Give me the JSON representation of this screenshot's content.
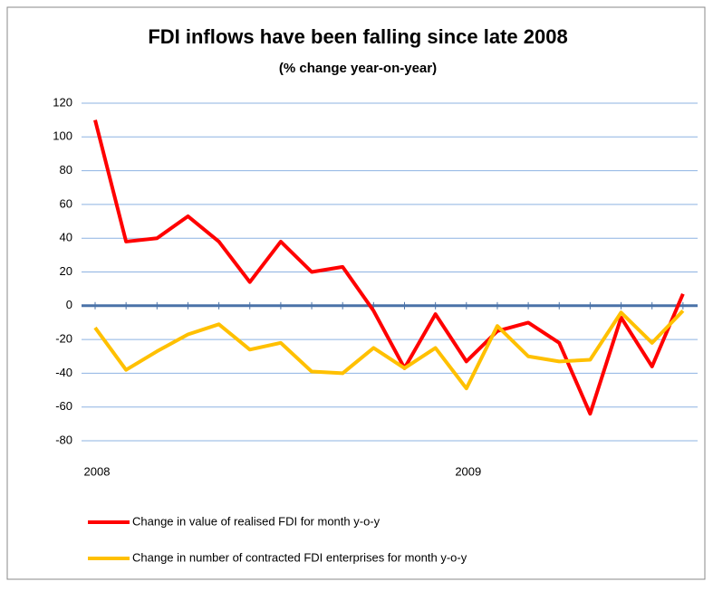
{
  "chart_data": {
    "type": "line",
    "title": "FDI inflows have been falling since late 2008",
    "subtitle": "(% change year-on-year)",
    "categories": [
      "2008",
      null,
      null,
      null,
      null,
      null,
      null,
      null,
      null,
      null,
      null,
      null,
      "2009",
      null,
      null,
      null,
      null,
      null,
      null,
      null
    ],
    "series": [
      {
        "name": "Change in value of realised FDI for month y-o-y",
        "color": "#ff0000",
        "values": [
          110,
          38,
          40,
          53,
          38,
          14,
          38,
          20,
          23,
          -3,
          -37,
          -5,
          -33,
          -15,
          -10,
          -22,
          -64,
          -7,
          -36,
          7
        ]
      },
      {
        "name": "Change in number of contracted FDI enterprises for month y-o-y",
        "color": "#ffc000",
        "values": [
          -13,
          -38,
          -27,
          -17,
          -11,
          -26,
          -22,
          -39,
          -40,
          -25,
          -37,
          -25,
          -49,
          -12,
          -30,
          -33,
          -32,
          -4,
          -22,
          -3
        ]
      }
    ],
    "ylim": [
      -80,
      120
    ],
    "yticks": [
      -80,
      -60,
      -40,
      -20,
      0,
      20,
      40,
      60,
      80,
      100,
      120
    ],
    "grid": true
  }
}
